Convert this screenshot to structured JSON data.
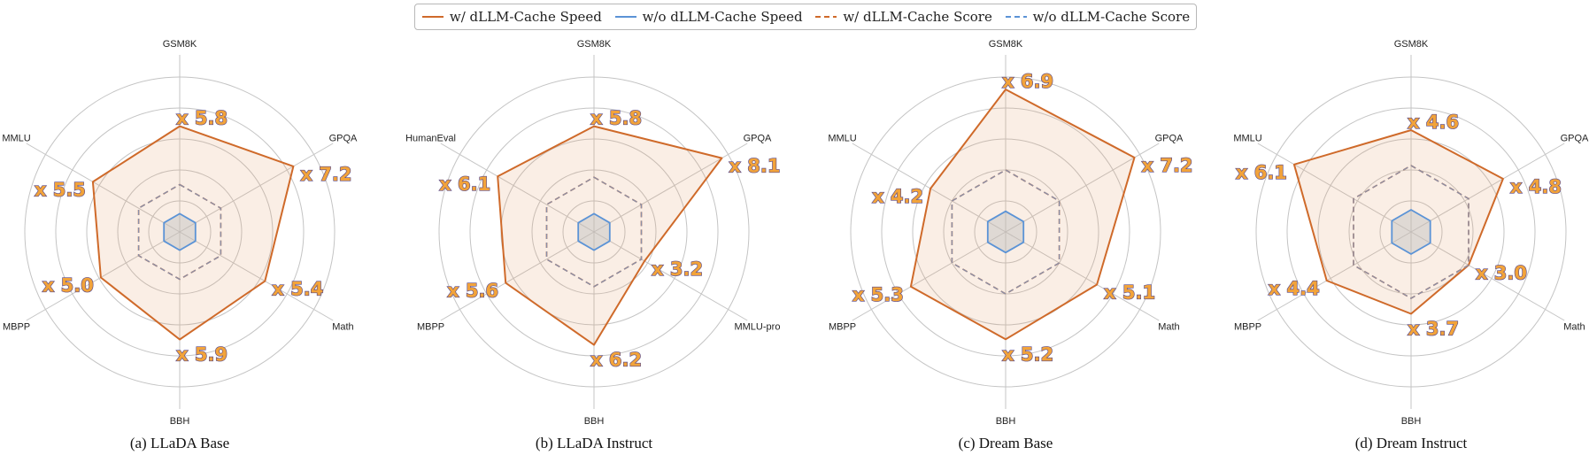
{
  "legend": [
    {
      "label": "w/  dLLM-Cache Speed",
      "color": "#cf6a2a",
      "dash": false
    },
    {
      "label": "w/o dLLM-Cache Speed",
      "color": "#5b93d6",
      "dash": false
    },
    {
      "label": "w/  dLLM-Cache Score",
      "color": "#cf6a2a",
      "dash": true
    },
    {
      "label": "w/o dLLM-Cache Score",
      "color": "#5b93d6",
      "dash": true
    }
  ],
  "chart_data": [
    {
      "type": "radar",
      "title": "(a) LLaDA Base",
      "axes": [
        "GSM8K",
        "GPQA",
        "Math",
        "BBH",
        "MBPP",
        "MMLU"
      ],
      "speedup_labels": [
        "x 5.8",
        "x 7.2",
        "x 5.4",
        "x 5.9",
        "x 5.0",
        "x 5.5"
      ],
      "series": [
        {
          "name": "w/  dLLM-Cache Speed",
          "values": [
            5.8,
            7.2,
            5.4,
            5.9,
            5.0,
            5.5
          ]
        },
        {
          "name": "w/o dLLM-Cache Speed",
          "values": [
            1,
            1,
            1,
            1,
            1,
            1
          ]
        },
        {
          "name": "w/  dLLM-Cache Score",
          "values": [
            2.6,
            2.6,
            2.6,
            2.6,
            2.6,
            2.6
          ]
        },
        {
          "name": "w/o dLLM-Cache Score",
          "values": [
            2.6,
            2.6,
            2.6,
            2.6,
            2.6,
            2.6
          ]
        }
      ],
      "rmax": 8.5,
      "grid_rings": 5
    },
    {
      "type": "radar",
      "title": "(b) LLaDA Instruct",
      "axes": [
        "GSM8K",
        "GPQA",
        "MMLU-pro",
        "BBH",
        "MBPP",
        "HumanEval"
      ],
      "speedup_labels": [
        "x 5.8",
        "x 8.1",
        "x 3.2",
        "x 6.2",
        "x 5.6",
        "x 6.1"
      ],
      "series": [
        {
          "name": "w/  dLLM-Cache Speed",
          "values": [
            5.8,
            8.1,
            3.2,
            6.2,
            5.6,
            6.1
          ]
        },
        {
          "name": "w/o dLLM-Cache Speed",
          "values": [
            1,
            1,
            1,
            1,
            1,
            1
          ]
        },
        {
          "name": "w/  dLLM-Cache Score",
          "values": [
            3.0,
            3.0,
            3.0,
            3.0,
            3.0,
            3.0
          ]
        },
        {
          "name": "w/o dLLM-Cache Score",
          "values": [
            3.0,
            3.0,
            3.0,
            3.0,
            3.0,
            3.0
          ]
        }
      ],
      "rmax": 8.5,
      "grid_rings": 5
    },
    {
      "type": "radar",
      "title": "(c) Dream Base",
      "axes": [
        "GSM8K",
        "GPQA",
        "Math",
        "BBH",
        "MBPP",
        "MMLU"
      ],
      "speedup_labels": [
        "x 6.9",
        "x 7.2",
        "x 5.1",
        "x 5.2",
        "x 5.3",
        "x 4.2"
      ],
      "series": [
        {
          "name": "w/  dLLM-Cache Speed",
          "values": [
            6.9,
            7.2,
            5.1,
            5.2,
            5.3,
            4.2
          ]
        },
        {
          "name": "w/o dLLM-Cache Speed",
          "values": [
            1,
            1,
            1,
            1,
            1,
            1
          ]
        },
        {
          "name": "w/  dLLM-Cache Score",
          "values": [
            3.0,
            3.0,
            3.0,
            3.0,
            3.0,
            3.0
          ]
        },
        {
          "name": "w/o dLLM-Cache Score",
          "values": [
            3.0,
            3.0,
            3.0,
            3.0,
            3.0,
            3.0
          ]
        }
      ],
      "rmax": 7.5,
      "grid_rings": 5
    },
    {
      "type": "radar",
      "title": "(d) Dream Instruct",
      "axes": [
        "GSM8K",
        "GPQA",
        "Math",
        "BBH",
        "MBPP",
        "MMLU"
      ],
      "speedup_labels": [
        "x 4.6",
        "x 4.8",
        "x 3.0",
        "x 3.7",
        "x 4.4",
        "x 6.1"
      ],
      "series": [
        {
          "name": "w/  dLLM-Cache Speed",
          "values": [
            4.6,
            4.8,
            3.0,
            3.7,
            4.4,
            6.1
          ]
        },
        {
          "name": "w/o dLLM-Cache Speed",
          "values": [
            1,
            1,
            1,
            1,
            1,
            1
          ]
        },
        {
          "name": "w/  dLLM-Cache Score",
          "values": [
            3.0,
            3.0,
            3.0,
            3.0,
            3.0,
            3.0
          ]
        },
        {
          "name": "w/o dLLM-Cache Score",
          "values": [
            3.0,
            3.0,
            3.0,
            3.0,
            3.0,
            3.0
          ]
        }
      ],
      "rmax": 7.0,
      "grid_rings": 5
    }
  ]
}
